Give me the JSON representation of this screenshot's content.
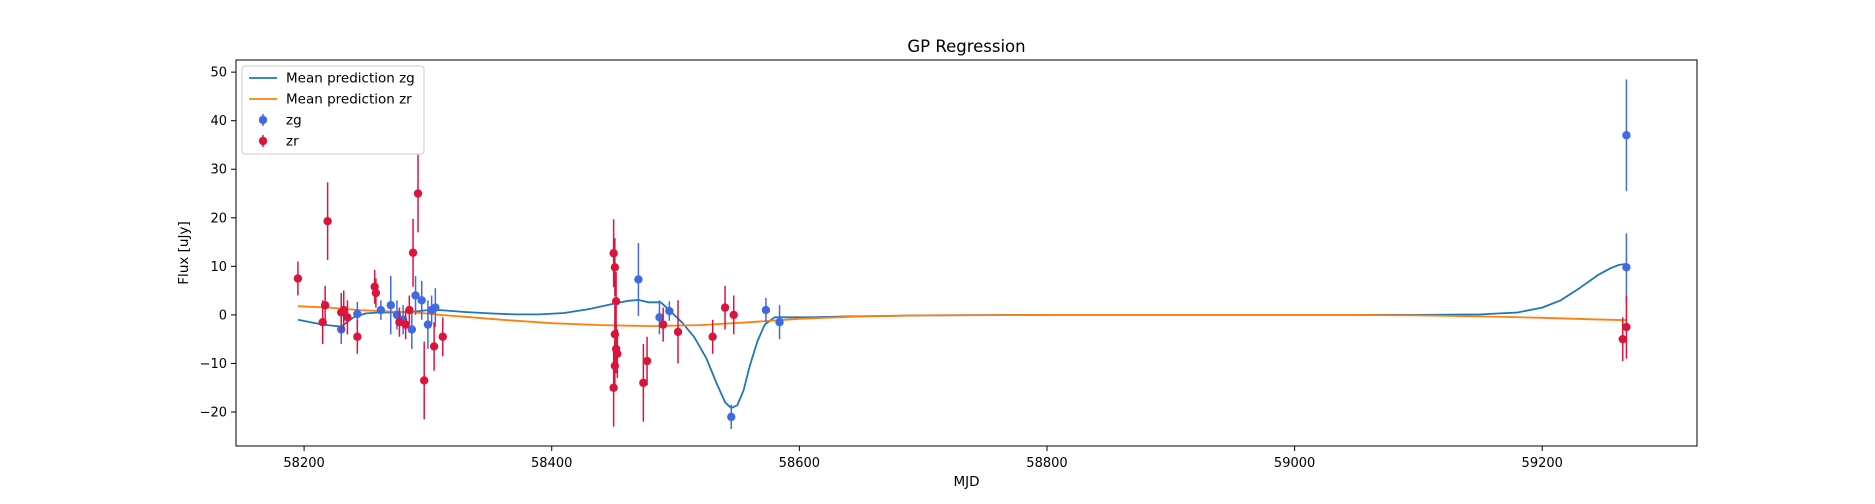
{
  "chart_data": {
    "type": "scatter",
    "title": "GP Regression",
    "xlabel": "MJD",
    "ylabel": "Flux [uJy]",
    "xlim": [
      58145,
      59325
    ],
    "ylim": [
      -27,
      52.5
    ],
    "xticks": [
      58200,
      58400,
      58600,
      58800,
      59000,
      59200
    ],
    "yticks": [
      -20,
      -10,
      0,
      10,
      20,
      30,
      40,
      50
    ],
    "grid": false,
    "legend_position": "top-left",
    "series": [
      {
        "name": "Mean prediction zg",
        "kind": "line",
        "color": "#1f77b4",
        "points": [
          [
            58195,
            -1.0
          ],
          [
            58215,
            -2.0
          ],
          [
            58230,
            -2.4
          ],
          [
            58240,
            -0.5
          ],
          [
            58250,
            0.3
          ],
          [
            58260,
            0.5
          ],
          [
            58270,
            0.5
          ],
          [
            58280,
            0.6
          ],
          [
            58290,
            0.7
          ],
          [
            58300,
            1.0
          ],
          [
            58310,
            1.0
          ],
          [
            58330,
            0.6
          ],
          [
            58350,
            0.3
          ],
          [
            58370,
            0.1
          ],
          [
            58390,
            0.1
          ],
          [
            58410,
            0.4
          ],
          [
            58430,
            1.2
          ],
          [
            58450,
            2.3
          ],
          [
            58462,
            2.9
          ],
          [
            58470,
            3.1
          ],
          [
            58478,
            2.6
          ],
          [
            58488,
            2.6
          ],
          [
            58495,
            1.0
          ],
          [
            58505,
            -1.5
          ],
          [
            58515,
            -4.5
          ],
          [
            58525,
            -9.0
          ],
          [
            58533,
            -14.0
          ],
          [
            58540,
            -18.0
          ],
          [
            58545,
            -19.2
          ],
          [
            58550,
            -18.6
          ],
          [
            58555,
            -15.5
          ],
          [
            58560,
            -10.5
          ],
          [
            58566,
            -5.5
          ],
          [
            58572,
            -2.0
          ],
          [
            58580,
            -0.5
          ],
          [
            58590,
            -0.5
          ],
          [
            58610,
            -0.5
          ],
          [
            58640,
            -0.3
          ],
          [
            58700,
            -0.1
          ],
          [
            58800,
            0.0
          ],
          [
            58900,
            0.0
          ],
          [
            59000,
            0.0
          ],
          [
            59100,
            0.0
          ],
          [
            59150,
            0.1
          ],
          [
            59180,
            0.5
          ],
          [
            59200,
            1.5
          ],
          [
            59215,
            3.0
          ],
          [
            59230,
            5.5
          ],
          [
            59245,
            8.2
          ],
          [
            59255,
            9.6
          ],
          [
            59262,
            10.3
          ],
          [
            59268,
            10.5
          ]
        ]
      },
      {
        "name": "Mean prediction zr",
        "kind": "line",
        "color": "#ff7f0e",
        "points": [
          [
            58195,
            1.8
          ],
          [
            58220,
            1.5
          ],
          [
            58245,
            1.0
          ],
          [
            58270,
            0.7
          ],
          [
            58290,
            0.5
          ],
          [
            58310,
            0.0
          ],
          [
            58330,
            -0.4
          ],
          [
            58360,
            -1.0
          ],
          [
            58400,
            -1.7
          ],
          [
            58440,
            -2.1
          ],
          [
            58480,
            -2.3
          ],
          [
            58520,
            -2.1
          ],
          [
            58560,
            -1.5
          ],
          [
            58600,
            -0.8
          ],
          [
            58650,
            -0.3
          ],
          [
            58700,
            -0.1
          ],
          [
            58800,
            0.0
          ],
          [
            58950,
            0.0
          ],
          [
            59050,
            0.0
          ],
          [
            59100,
            -0.1
          ],
          [
            59150,
            -0.3
          ],
          [
            59200,
            -0.6
          ],
          [
            59240,
            -0.9
          ],
          [
            59268,
            -1.1
          ]
        ]
      },
      {
        "name": "zg",
        "kind": "errorbar",
        "color": "#4169e1",
        "points": [
          [
            58230,
            -3.0,
            3.0
          ],
          [
            58243,
            0.2,
            2.5
          ],
          [
            58262,
            1.0,
            2.0
          ],
          [
            58270,
            2.0,
            6.0
          ],
          [
            58275,
            0.0,
            3.0
          ],
          [
            58280,
            -1.0,
            3.0
          ],
          [
            58287,
            -3.0,
            4.0
          ],
          [
            58290,
            4.0,
            4.0
          ],
          [
            58295,
            3.0,
            4.0
          ],
          [
            58300,
            -2.0,
            5.0
          ],
          [
            58303,
            1.0,
            3.0
          ],
          [
            58306,
            1.5,
            4.0
          ],
          [
            58470,
            7.3,
            7.5
          ],
          [
            58487,
            -0.5,
            3.5
          ],
          [
            58495,
            0.8,
            2.0
          ],
          [
            58545,
            -21.0,
            2.5
          ],
          [
            58573,
            1.0,
            2.5
          ],
          [
            58584,
            -1.5,
            3.5
          ],
          [
            59268,
            37.0,
            11.5
          ],
          [
            59268,
            9.8,
            7.0
          ]
        ]
      },
      {
        "name": "zr",
        "kind": "errorbar",
        "color": "#dc143c",
        "points": [
          [
            58195,
            7.5,
            3.5
          ],
          [
            58215,
            -1.5,
            4.5
          ],
          [
            58217,
            2.0,
            4.0
          ],
          [
            58219,
            19.3,
            8.0
          ],
          [
            58230,
            0.5,
            4.0
          ],
          [
            58232,
            1.0,
            4.0
          ],
          [
            58235,
            -0.5,
            3.5
          ],
          [
            58243,
            -4.5,
            3.5
          ],
          [
            58257,
            5.8,
            3.5
          ],
          [
            58258,
            4.5,
            3.0
          ],
          [
            58277,
            -1.5,
            3.0
          ],
          [
            58282,
            -2.0,
            3.0
          ],
          [
            58285,
            1.0,
            3.0
          ],
          [
            58288,
            12.8,
            7.0
          ],
          [
            58292,
            25.0,
            8.0
          ],
          [
            58297,
            -13.5,
            8.0
          ],
          [
            58305,
            -6.5,
            5.0
          ],
          [
            58312,
            -4.5,
            4.0
          ],
          [
            58450,
            12.7,
            7.0
          ],
          [
            58451,
            9.8,
            6.0
          ],
          [
            58452,
            2.8,
            6.0
          ],
          [
            58451,
            -4.0,
            6.0
          ],
          [
            58452,
            -7.0,
            5.0
          ],
          [
            58451,
            -10.5,
            5.0
          ],
          [
            58450,
            -15.0,
            8.0
          ],
          [
            58453,
            -8.0,
            5.0
          ],
          [
            58474,
            -14.0,
            8.0
          ],
          [
            58477,
            -9.5,
            5.0
          ],
          [
            58490,
            -2.0,
            3.5
          ],
          [
            58502,
            -3.5,
            6.5
          ],
          [
            58530,
            -4.5,
            3.5
          ],
          [
            58540,
            1.5,
            4.5
          ],
          [
            58547,
            0.0,
            4.0
          ],
          [
            59265,
            -5.0,
            4.5
          ],
          [
            59268,
            -2.5,
            6.5
          ]
        ]
      }
    ]
  }
}
